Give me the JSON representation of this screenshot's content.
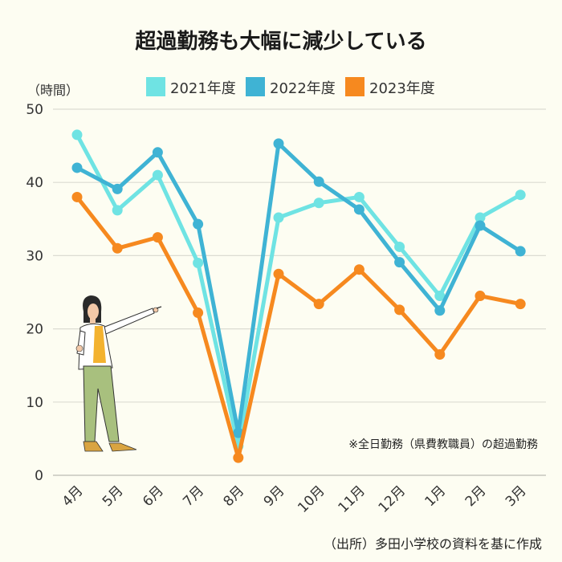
{
  "chart_data": {
    "type": "line",
    "title": "超過勤務も大幅に減少している",
    "ylabel": "（時間）",
    "ylim": [
      0,
      50
    ],
    "yticks": [
      0,
      10,
      20,
      30,
      40,
      50
    ],
    "grid": true,
    "legend_position": "top",
    "categories": [
      "4月",
      "5月",
      "6月",
      "7月",
      "8月",
      "9月",
      "10月",
      "11月",
      "12月",
      "1月",
      "2月",
      "3月"
    ],
    "series": [
      {
        "name": "2021年度",
        "color": "#6fe3e3",
        "values": [
          46.5,
          36.2,
          41.0,
          29.0,
          4.0,
          35.2,
          37.2,
          38.0,
          31.2,
          24.5,
          35.2,
          38.3
        ]
      },
      {
        "name": "2022年度",
        "color": "#3fb3d4",
        "values": [
          42.0,
          39.1,
          44.1,
          34.3,
          5.8,
          45.3,
          40.1,
          36.3,
          29.1,
          22.5,
          34.1,
          30.6
        ]
      },
      {
        "name": "2023年度",
        "color": "#f6891f",
        "values": [
          38.0,
          31.0,
          32.5,
          22.2,
          2.4,
          27.5,
          23.4,
          28.1,
          22.6,
          16.5,
          24.5,
          23.4
        ]
      }
    ],
    "note": "※全日勤務（県費教職員）の超過勤務",
    "source": "（出所）多田小学校の資料を基に作成"
  },
  "illustration": {
    "name": "presenter-woman"
  }
}
